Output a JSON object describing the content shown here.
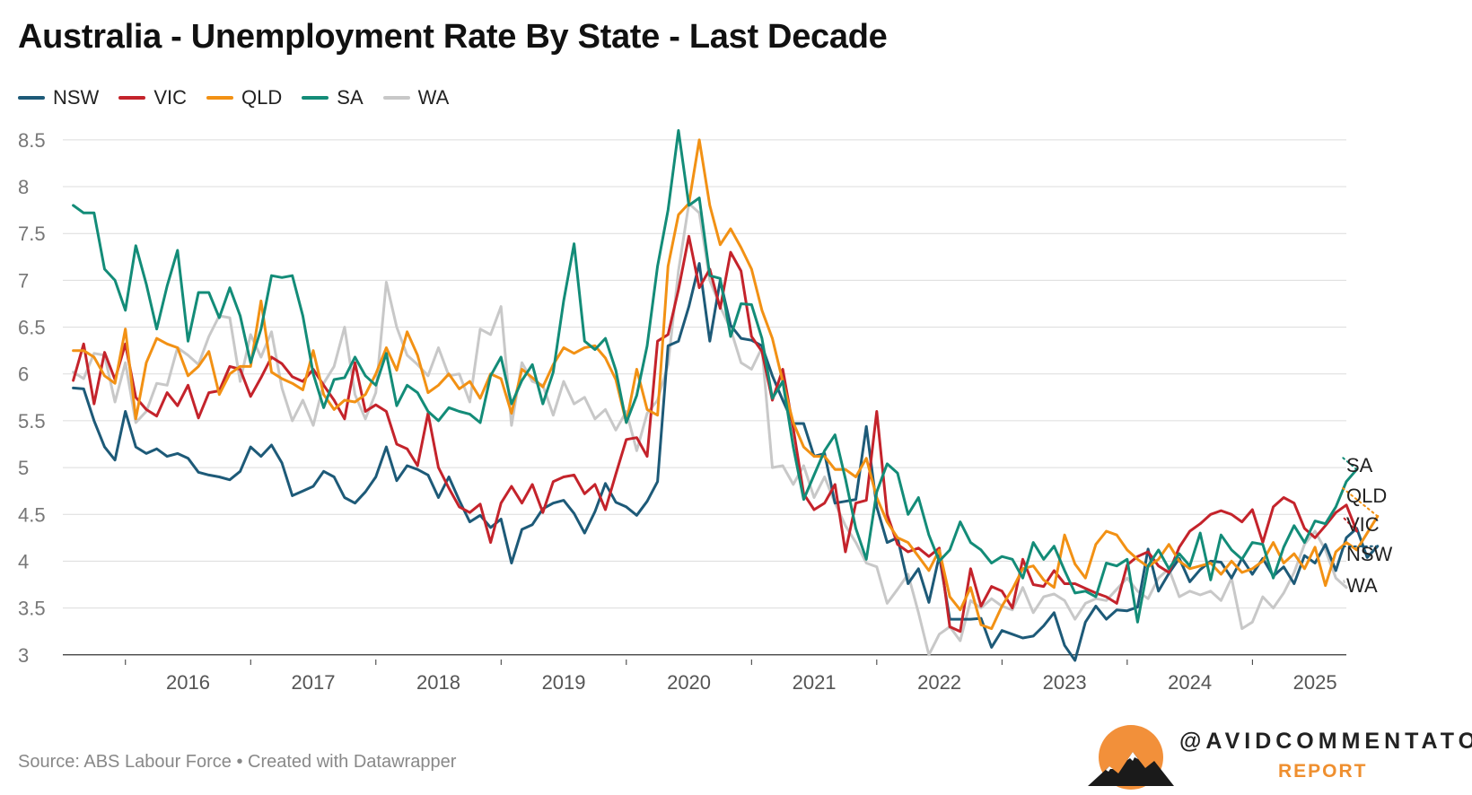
{
  "header": {
    "title": "Australia - Unemployment Rate By State - Last Decade"
  },
  "footer": {
    "source": "Source: ABS Labour Force • Created with Datawrapper"
  },
  "brand": {
    "name": "@AVIDCOMMENTATOR",
    "sub": "REPORT"
  },
  "chart_data": {
    "type": "line",
    "title": "Australia - Unemployment Rate By State - Last Decade",
    "xlabel": "",
    "ylabel": "",
    "x_start": 2015.583,
    "x_step": 0.0833333,
    "xlim": [
      2015.5,
      2025.75
    ],
    "ylim": [
      2.95,
      8.7
    ],
    "y_ticks": [
      3,
      3.5,
      4,
      4.5,
      5,
      5.5,
      6,
      6.5,
      7,
      7.5,
      8,
      8.5
    ],
    "y_tick_labels": [
      "3",
      "3.5",
      "4",
      "4.5",
      "5",
      "5.5",
      "6",
      "6.5",
      "7",
      "7.5",
      "8",
      "8.5"
    ],
    "x_ticks": [
      2016,
      2017,
      2018,
      2019,
      2020,
      2021,
      2022,
      2023,
      2024,
      2025
    ],
    "x_tick_labels": [
      "2016",
      "2017",
      "2018",
      "2019",
      "2020",
      "2021",
      "2022",
      "2023",
      "2024",
      "2025"
    ],
    "grid": true,
    "legend_position": "top-left",
    "series": [
      {
        "name": "NSW",
        "color": "#1d5a78",
        "end_label": "NSW",
        "values": [
          5.85,
          5.84,
          5.5,
          5.22,
          5.08,
          5.6,
          5.22,
          5.15,
          5.2,
          5.12,
          5.15,
          5.1,
          4.95,
          4.92,
          4.9,
          4.87,
          4.96,
          5.22,
          5.12,
          5.24,
          5.05,
          4.7,
          4.75,
          4.8,
          4.96,
          4.9,
          4.68,
          4.62,
          4.74,
          4.9,
          5.22,
          4.86,
          5.02,
          4.98,
          4.92,
          4.68,
          4.9,
          4.65,
          4.42,
          4.49,
          4.36,
          4.45,
          3.98,
          4.34,
          4.39,
          4.56,
          4.62,
          4.65,
          4.51,
          4.3,
          4.53,
          4.83,
          4.63,
          4.58,
          4.49,
          4.64,
          4.85,
          6.3,
          6.35,
          6.72,
          7.18,
          6.35,
          7.0,
          6.52,
          6.38,
          6.36,
          6.3,
          5.98,
          5.72,
          5.47,
          5.47,
          5.12,
          5.15,
          4.62,
          4.64,
          4.66,
          5.44,
          4.58,
          4.2,
          4.25,
          3.76,
          3.92,
          3.56,
          4.06,
          3.38,
          3.38,
          3.38,
          3.39,
          3.08,
          3.26,
          3.22,
          3.18,
          3.2,
          3.31,
          3.45,
          3.1,
          2.94,
          3.35,
          3.52,
          3.38,
          3.48,
          3.47,
          3.51,
          4.13,
          3.68,
          3.87,
          4.03,
          3.78,
          3.91,
          4.0,
          3.99,
          3.82,
          4.03,
          3.86,
          4.03,
          3.84,
          3.94,
          3.76,
          4.06,
          3.98,
          4.18,
          3.9,
          4.25,
          4.35,
          4.04,
          4.16
        ]
      },
      {
        "name": "VIC",
        "color": "#c4232b",
        "end_label": "VIC",
        "values": [
          5.93,
          6.32,
          5.68,
          6.23,
          5.94,
          6.32,
          5.75,
          5.62,
          5.55,
          5.8,
          5.66,
          5.88,
          5.53,
          5.8,
          5.82,
          6.08,
          6.05,
          5.76,
          5.96,
          6.18,
          6.11,
          5.97,
          5.92,
          6.05,
          5.88,
          5.72,
          5.52,
          6.12,
          5.6,
          5.67,
          5.6,
          5.25,
          5.2,
          5.02,
          5.58,
          5.0,
          4.78,
          4.58,
          4.52,
          4.61,
          4.2,
          4.62,
          4.8,
          4.62,
          4.82,
          4.52,
          4.85,
          4.9,
          4.92,
          4.72,
          4.82,
          4.55,
          4.93,
          5.3,
          5.32,
          5.12,
          6.35,
          6.42,
          6.9,
          7.47,
          6.92,
          7.12,
          6.7,
          7.3,
          7.1,
          6.4,
          6.24,
          5.72,
          6.05,
          5.42,
          4.72,
          4.55,
          4.62,
          4.82,
          4.1,
          4.62,
          4.65,
          5.6,
          4.5,
          4.18,
          4.1,
          4.14,
          4.05,
          4.14,
          3.3,
          3.25,
          3.92,
          3.52,
          3.73,
          3.68,
          3.5,
          4.02,
          3.75,
          3.73,
          3.9,
          3.76,
          3.76,
          3.71,
          3.66,
          3.62,
          3.55,
          3.96,
          4.05,
          4.1,
          3.95,
          3.88,
          4.15,
          4.32,
          4.4,
          4.5,
          4.54,
          4.5,
          4.42,
          4.55,
          4.2,
          4.58,
          4.68,
          4.62,
          4.35,
          4.25,
          4.38,
          4.52,
          4.6,
          4.32
        ]
      },
      {
        "name": "QLD",
        "color": "#f29114",
        "end_label": "QLD",
        "values": [
          6.25,
          6.25,
          6.18,
          5.98,
          5.9,
          6.48,
          5.52,
          6.12,
          6.38,
          6.32,
          6.28,
          5.98,
          6.08,
          6.24,
          5.78,
          6.0,
          6.08,
          6.08,
          6.78,
          6.02,
          5.95,
          5.9,
          5.83,
          6.25,
          5.78,
          5.62,
          5.72,
          5.7,
          5.78,
          6.0,
          6.28,
          6.04,
          6.45,
          6.2,
          5.8,
          5.88,
          6.0,
          5.84,
          5.92,
          5.74,
          6.0,
          5.95,
          5.58,
          6.05,
          5.96,
          5.86,
          6.1,
          6.28,
          6.22,
          6.28,
          6.3,
          6.17,
          5.94,
          5.48,
          6.05,
          5.62,
          5.56,
          7.15,
          7.7,
          7.82,
          8.5,
          7.8,
          7.38,
          7.55,
          7.35,
          7.12,
          6.68,
          6.38,
          5.92,
          5.48,
          5.22,
          5.12,
          5.12,
          4.98,
          4.98,
          4.9,
          5.1,
          4.68,
          4.42,
          4.25,
          4.2,
          4.05,
          3.9,
          4.12,
          3.62,
          3.48,
          3.72,
          3.32,
          3.28,
          3.52,
          3.7,
          3.92,
          3.95,
          3.8,
          3.72,
          4.28,
          3.97,
          3.82,
          4.18,
          4.32,
          4.28,
          4.12,
          4.02,
          3.94,
          4.02,
          4.18,
          4.0,
          3.92,
          3.95,
          3.98,
          3.86,
          4.0,
          3.88,
          3.92,
          4.0,
          4.2,
          3.98,
          4.08,
          3.92,
          4.15,
          3.74,
          4.1,
          4.2,
          4.12,
          4.3,
          4.48
        ]
      },
      {
        "name": "SA",
        "color": "#138c78",
        "end_label": "SA",
        "values": [
          7.8,
          7.72,
          7.72,
          7.12,
          7.0,
          6.68,
          7.37,
          6.96,
          6.48,
          6.94,
          7.32,
          6.35,
          6.87,
          6.87,
          6.6,
          6.92,
          6.62,
          6.12,
          6.48,
          7.05,
          7.03,
          7.05,
          6.62,
          6.0,
          5.64,
          5.94,
          5.96,
          6.18,
          5.98,
          5.88,
          6.22,
          5.66,
          5.88,
          5.8,
          5.6,
          5.5,
          5.64,
          5.6,
          5.57,
          5.48,
          5.98,
          6.18,
          5.68,
          5.93,
          6.1,
          5.68,
          6.02,
          6.78,
          7.39,
          6.35,
          6.26,
          6.38,
          6.04,
          5.48,
          5.77,
          6.3,
          7.15,
          7.75,
          8.6,
          7.8,
          7.88,
          7.05,
          7.02,
          6.4,
          6.75,
          6.74,
          6.38,
          5.74,
          5.92,
          5.22,
          4.66,
          4.92,
          5.18,
          5.35,
          4.88,
          4.35,
          4.02,
          4.74,
          5.04,
          4.94,
          4.5,
          4.68,
          4.28,
          4.0,
          4.12,
          4.42,
          4.2,
          4.12,
          3.98,
          4.05,
          4.02,
          3.82,
          4.2,
          4.02,
          4.16,
          3.9,
          3.66,
          3.68,
          3.62,
          3.98,
          3.95,
          4.02,
          3.35,
          3.95,
          4.12,
          3.92,
          4.08,
          3.95,
          4.3,
          3.8,
          4.28,
          4.12,
          4.02,
          4.2,
          4.18,
          3.82,
          4.15,
          4.38,
          4.2,
          4.43,
          4.4,
          4.58,
          4.85,
          4.98
        ]
      },
      {
        "name": "WA",
        "color": "#c8c8c8",
        "end_label": "WA",
        "values": [
          6.02,
          5.95,
          6.22,
          6.2,
          5.7,
          6.12,
          5.48,
          5.6,
          5.9,
          5.88,
          6.28,
          6.2,
          6.1,
          6.4,
          6.62,
          6.6,
          5.92,
          6.42,
          6.18,
          6.45,
          5.85,
          5.5,
          5.72,
          5.45,
          5.9,
          6.08,
          6.5,
          5.78,
          5.52,
          5.8,
          6.98,
          6.5,
          6.2,
          6.1,
          5.98,
          6.28,
          5.98,
          6.0,
          5.7,
          6.48,
          6.42,
          6.72,
          5.45,
          6.12,
          5.92,
          5.88,
          5.56,
          5.92,
          5.68,
          5.75,
          5.52,
          5.62,
          5.4,
          5.6,
          5.18,
          5.58,
          5.72,
          6.1,
          7.1,
          7.82,
          7.72,
          7.0,
          6.72,
          6.48,
          6.12,
          6.05,
          6.28,
          5.0,
          5.02,
          4.82,
          5.02,
          4.68,
          4.9,
          4.62,
          4.38,
          4.2,
          3.98,
          3.94,
          3.55,
          3.7,
          3.86,
          3.45,
          3.0,
          3.22,
          3.3,
          3.15,
          3.58,
          3.5,
          3.6,
          3.52,
          3.48,
          3.72,
          3.45,
          3.62,
          3.65,
          3.58,
          3.38,
          3.55,
          3.6,
          3.58,
          3.7,
          3.82,
          3.68,
          3.6,
          3.82,
          3.92,
          3.62,
          3.68,
          3.64,
          3.68,
          3.58,
          3.82,
          3.28,
          3.35,
          3.62,
          3.5,
          3.66,
          3.88,
          4.18,
          4.32,
          4.12,
          3.82,
          3.72
        ]
      }
    ]
  }
}
